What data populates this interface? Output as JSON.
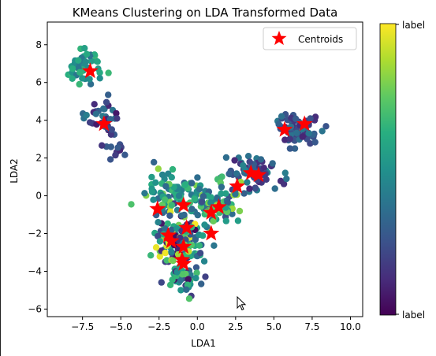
{
  "chart_data": {
    "type": "scatter",
    "title": "KMeans Clustering on LDA Transformed Data",
    "xlabel": "LDA1",
    "ylabel": "LDA2",
    "xlim": [
      -9.8,
      10.8
    ],
    "ylim": [
      -6.4,
      9.2
    ],
    "xticks": [
      -7.5,
      -5.0,
      -2.5,
      0.0,
      2.5,
      5.0,
      7.5,
      10.0
    ],
    "xtick_labels": [
      "−7.5",
      "−5.0",
      "−2.5",
      "0.0",
      "2.5",
      "5.0",
      "7.5",
      "10.0"
    ],
    "yticks": [
      -6,
      -4,
      -2,
      0,
      2,
      4,
      6,
      8
    ],
    "ytick_labels": [
      "−6",
      "−4",
      "−2",
      "0",
      "2",
      "4",
      "6",
      "8"
    ],
    "grid": false,
    "legend": {
      "location": "top-right",
      "entries": [
        "Centroids"
      ]
    },
    "centroid_color": "#ff0000",
    "colormap": "viridis",
    "colorbar": {
      "top_label": "label",
      "bottom_label": "label"
    },
    "centroids": [
      {
        "x": -7.0,
        "y": 6.6
      },
      {
        "x": -6.1,
        "y": 3.8
      },
      {
        "x": 5.7,
        "y": 3.5
      },
      {
        "x": 7.0,
        "y": 3.8
      },
      {
        "x": 3.5,
        "y": 1.2
      },
      {
        "x": 4.0,
        "y": 1.1
      },
      {
        "x": 2.6,
        "y": 0.5
      },
      {
        "x": -2.6,
        "y": -0.7
      },
      {
        "x": -0.9,
        "y": -0.5
      },
      {
        "x": 1.4,
        "y": -0.6
      },
      {
        "x": 0.9,
        "y": -0.9
      },
      {
        "x": -0.7,
        "y": -1.7
      },
      {
        "x": -1.9,
        "y": -2.1
      },
      {
        "x": 0.9,
        "y": -2.0
      },
      {
        "x": -1.7,
        "y": -2.4
      },
      {
        "x": -0.9,
        "y": -2.7
      },
      {
        "x": -1.0,
        "y": -3.4
      },
      {
        "x": -0.9,
        "y": -3.6
      }
    ],
    "point_clusters": [
      {
        "cx": -7.3,
        "cy": 6.9,
        "sx": 0.9,
        "sy": 0.9,
        "n": 45,
        "color_range": [
          0.35,
          0.7
        ]
      },
      {
        "cx": -6.3,
        "cy": 4.2,
        "sx": 0.9,
        "sy": 0.8,
        "n": 30,
        "color_range": [
          0.05,
          0.45
        ]
      },
      {
        "cx": -5.5,
        "cy": 2.8,
        "sx": 0.8,
        "sy": 0.9,
        "n": 15,
        "color_range": [
          0.05,
          0.3
        ]
      },
      {
        "cx": 6.6,
        "cy": 3.6,
        "sx": 1.3,
        "sy": 0.9,
        "n": 70,
        "color_range": [
          0.1,
          0.4
        ]
      },
      {
        "cx": 3.6,
        "cy": 1.3,
        "sx": 1.4,
        "sy": 0.7,
        "n": 70,
        "color_range": [
          0.1,
          0.45
        ]
      },
      {
        "cx": 1.3,
        "cy": -0.4,
        "sx": 1.5,
        "sy": 0.9,
        "n": 90,
        "color_range": [
          0.2,
          0.85
        ]
      },
      {
        "cx": -1.9,
        "cy": 0.1,
        "sx": 1.6,
        "sy": 0.8,
        "n": 70,
        "color_range": [
          0.3,
          0.85
        ]
      },
      {
        "cx": -1.2,
        "cy": -2.4,
        "sx": 1.2,
        "sy": 1.1,
        "n": 150,
        "color_range": [
          0.0,
          1.0
        ]
      },
      {
        "cx": -0.9,
        "cy": -4.3,
        "sx": 0.9,
        "sy": 0.7,
        "n": 45,
        "color_range": [
          0.0,
          0.8
        ]
      }
    ]
  },
  "cursor": {
    "icon": "mouse-pointer-icon"
  }
}
